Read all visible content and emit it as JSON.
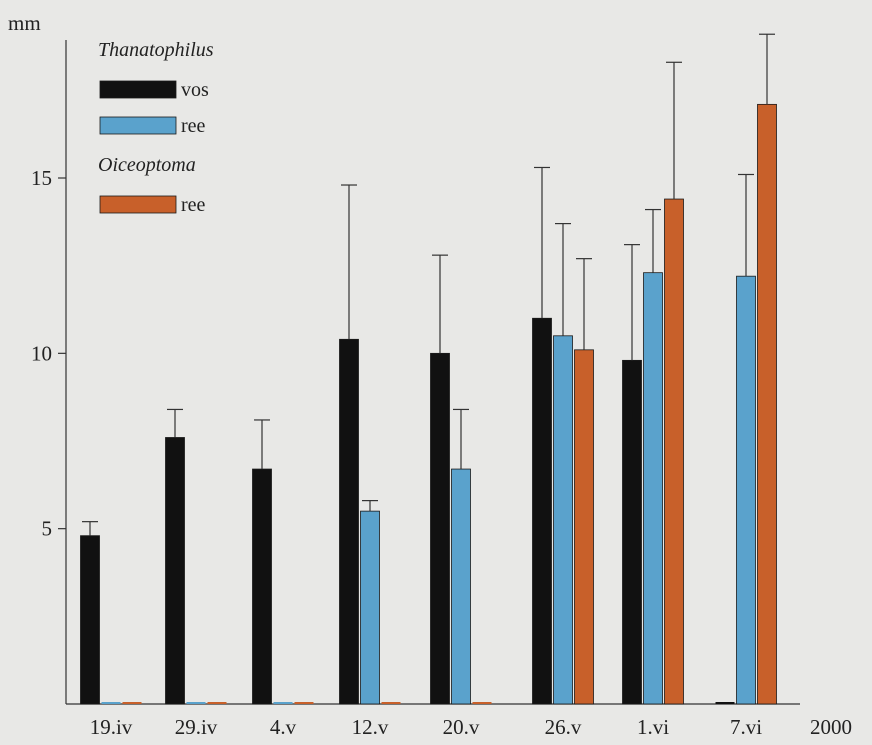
{
  "chart_data": {
    "type": "bar",
    "ylabel": "mm",
    "x_extra_label": "2000",
    "ylim": [
      0,
      19
    ],
    "yticks": [
      5,
      10,
      15
    ],
    "categories": [
      "19.iv",
      "29.iv",
      "4.v",
      "12.v",
      "20.v",
      "26.v",
      "1.vi",
      "7.vi"
    ],
    "legend": [
      {
        "group": "Thanatophilus",
        "entries": [
          {
            "label": "vos",
            "series": 0
          },
          {
            "label": "ree",
            "series": 1
          }
        ]
      },
      {
        "group": "Oiceoptoma",
        "entries": [
          {
            "label": "ree",
            "series": 2
          }
        ]
      }
    ],
    "series": [
      {
        "color": "#111111",
        "values": [
          4.8,
          7.6,
          6.7,
          10.4,
          10.0,
          11.0,
          9.8,
          0
        ],
        "error": [
          0.4,
          0.8,
          1.4,
          4.4,
          2.8,
          4.3,
          3.3,
          0
        ]
      },
      {
        "color": "#5aa2cc",
        "values": [
          0,
          0,
          0,
          5.5,
          6.7,
          10.5,
          12.3,
          12.2
        ],
        "error": [
          0,
          0,
          0,
          0.3,
          1.7,
          3.2,
          1.8,
          2.9
        ]
      },
      {
        "color": "#c8602a",
        "values": [
          0,
          0,
          0,
          0,
          0,
          10.1,
          14.4,
          17.1
        ],
        "error": [
          0,
          0,
          0,
          0,
          0,
          2.6,
          3.9,
          2.0
        ]
      }
    ],
    "grid": false
  }
}
